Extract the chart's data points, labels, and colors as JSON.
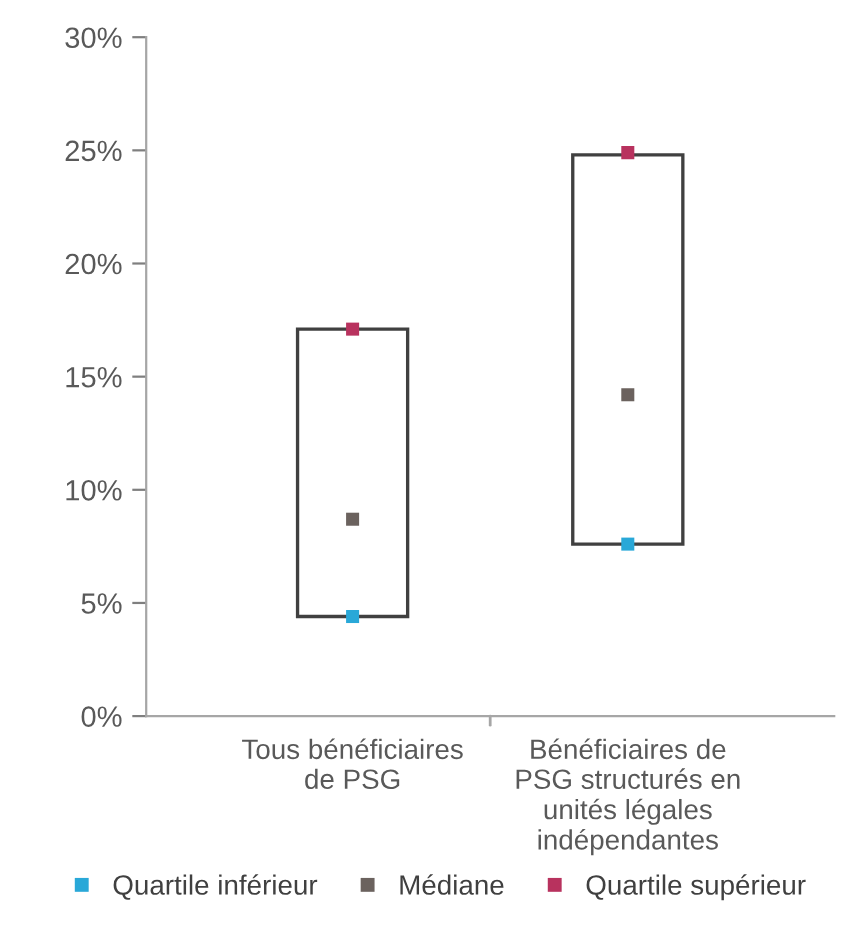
{
  "chart_data": {
    "type": "bar",
    "categories": [
      "Tous bénéficiaires de PSG",
      "Bénéficiaires de PSG structurés en unités légales indépendantes"
    ],
    "series": [
      {
        "type": "bar",
        "color": "#ffffff",
        "values": [
          12.7,
          17.2
        ],
        "base": [
          4.4,
          7.6
        ]
      },
      {
        "type": "scatter",
        "name": "Quartile inférieur",
        "color": "#29a8d8",
        "x": [
          "Tous bénéficiaires de PSG",
          "Bénéficiaires de PSG structurés en unités légales indépendantes"
        ],
        "values": [
          4.4,
          7.6
        ]
      },
      {
        "type": "scatter",
        "name": "Médiane",
        "color": "#6b625e",
        "x": [
          "Tous bénéficiaires de PSG",
          "Bénéficiaires de PSG structurés en unités légales indépendantes"
        ],
        "values": [
          8.7,
          14.2
        ]
      },
      {
        "type": "scatter",
        "name": "Quartile supérieur",
        "color": "#b8325e",
        "x": [
          "Tous bénéficiaires de PSG",
          "Bénéficiaires de PSG structurés en unités légales indépendantes"
        ],
        "values": [
          17.1,
          24.9
        ]
      }
    ],
    "ylim": [
      0,
      30
    ],
    "yticks": [
      {
        "value": 0,
        "label": "0%"
      },
      {
        "value": 5,
        "label": "5%"
      },
      {
        "value": 10,
        "label": "10%"
      },
      {
        "value": 15,
        "label": "15%"
      },
      {
        "value": 20,
        "label": "20%"
      },
      {
        "value": 25,
        "label": "25%"
      },
      {
        "value": 30,
        "label": "30%"
      }
    ],
    "legend": "bottom",
    "grid": false
  }
}
